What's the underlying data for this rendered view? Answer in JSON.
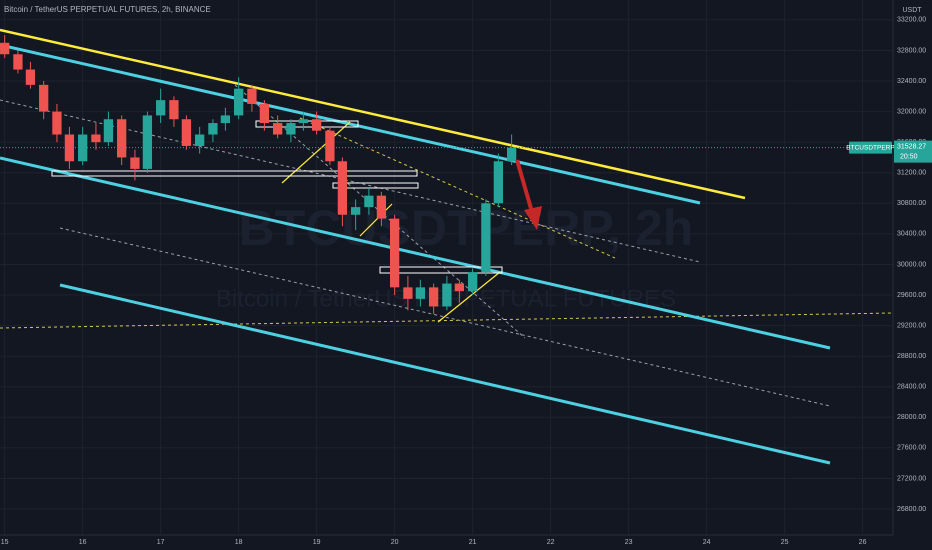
{
  "chart_data": {
    "type": "candlestick",
    "title": "Bitcoin / TetherUS PERPETUAL FUTURES, 2h, BINANCE",
    "y_axis_label": "USDT",
    "watermark": "BTCUSDTPERP, 2h",
    "watermark_subtitle": "Bitcoin / TetherUS PERPETUAL FUTURES",
    "symbol_tag": "BTCUSDTPERP",
    "last_price": 31528.27,
    "countdown": "20:50",
    "up_color": "#26a69a",
    "down_color": "#ef5350",
    "grid": true,
    "xlim": [
      14.94,
      26.39
    ],
    "ylim": [
      26460,
      33460
    ],
    "xticks": [
      15,
      16,
      17,
      18,
      19,
      20,
      21,
      22,
      23,
      24,
      25,
      26
    ],
    "yticks": [
      {
        "value": 26800,
        "label": "26800.00"
      },
      {
        "value": 27200,
        "label": "27200.00"
      },
      {
        "value": 27600,
        "label": "27600.00"
      },
      {
        "value": 28000,
        "label": "28000.00"
      },
      {
        "value": 28400,
        "label": "28400.00"
      },
      {
        "value": 28800,
        "label": "28800.00"
      },
      {
        "value": 29200,
        "label": "29200.00"
      },
      {
        "value": 29600,
        "label": "29600.00"
      },
      {
        "value": 30000,
        "label": "30000.00"
      },
      {
        "value": 30400,
        "label": "30400.00"
      },
      {
        "value": 30800,
        "label": "30800.00"
      },
      {
        "value": 31200,
        "label": "31200.00"
      },
      {
        "value": 31600,
        "label": "31600.00"
      },
      {
        "value": 32000,
        "label": "32000.00"
      },
      {
        "value": 32400,
        "label": "32400.00"
      },
      {
        "value": 32800,
        "label": "32800.00"
      },
      {
        "value": 33200,
        "label": "33200.00"
      }
    ],
    "x": [
      15.0,
      15.17,
      15.33,
      15.5,
      15.67,
      15.83,
      16.0,
      16.17,
      16.33,
      16.5,
      16.67,
      16.83,
      17.0,
      17.17,
      17.33,
      17.5,
      17.67,
      17.83,
      18.0,
      18.17,
      18.33,
      18.5,
      18.67,
      18.83,
      19.0,
      19.17,
      19.33,
      19.5,
      19.67,
      19.83,
      20.0,
      20.17,
      20.33,
      20.5,
      20.67,
      20.83,
      21.0,
      21.17,
      21.33,
      21.5
    ],
    "candles": [
      [
        32900,
        33000,
        32700,
        32750
      ],
      [
        32750,
        32800,
        32500,
        32550
      ],
      [
        32550,
        32650,
        32300,
        32350
      ],
      [
        32350,
        32400,
        31900,
        32000
      ],
      [
        32000,
        32100,
        31600,
        31700
      ],
      [
        31700,
        31800,
        31250,
        31350
      ],
      [
        31350,
        31800,
        31300,
        31700
      ],
      [
        31700,
        31850,
        31500,
        31600
      ],
      [
        31600,
        32000,
        31550,
        31900
      ],
      [
        31900,
        31950,
        31300,
        31400
      ],
      [
        31400,
        31500,
        31100,
        31250
      ],
      [
        31250,
        32000,
        31200,
        31950
      ],
      [
        31950,
        32300,
        31850,
        32150
      ],
      [
        32150,
        32200,
        31800,
        31900
      ],
      [
        31900,
        31950,
        31500,
        31550
      ],
      [
        31550,
        31800,
        31450,
        31700
      ],
      [
        31700,
        31900,
        31600,
        31850
      ],
      [
        31850,
        32050,
        31750,
        31950
      ],
      [
        31950,
        32450,
        31900,
        32300
      ],
      [
        32300,
        32350,
        32000,
        32100
      ],
      [
        32100,
        32150,
        31750,
        31850
      ],
      [
        31850,
        31950,
        31650,
        31700
      ],
      [
        31700,
        31900,
        31600,
        31850
      ],
      [
        31850,
        32000,
        31750,
        31900
      ],
      [
        31900,
        32000,
        31700,
        31750
      ],
      [
        31750,
        31800,
        31300,
        31350
      ],
      [
        31350,
        31400,
        30500,
        30650
      ],
      [
        30650,
        30850,
        30450,
        30750
      ],
      [
        30750,
        31000,
        30650,
        30900
      ],
      [
        30900,
        30950,
        30500,
        30600
      ],
      [
        30600,
        30650,
        29600,
        29700
      ],
      [
        29700,
        29850,
        29400,
        29550
      ],
      [
        29550,
        29800,
        29450,
        29700
      ],
      [
        29700,
        29750,
        29350,
        29450
      ],
      [
        29450,
        29850,
        29400,
        29750
      ],
      [
        29750,
        29800,
        29500,
        29650
      ],
      [
        29650,
        29950,
        29600,
        29900
      ],
      [
        29900,
        30850,
        29850,
        30800
      ],
      [
        30800,
        31450,
        30750,
        31350
      ],
      [
        31350,
        31700,
        31300,
        31528.27
      ]
    ]
  }
}
